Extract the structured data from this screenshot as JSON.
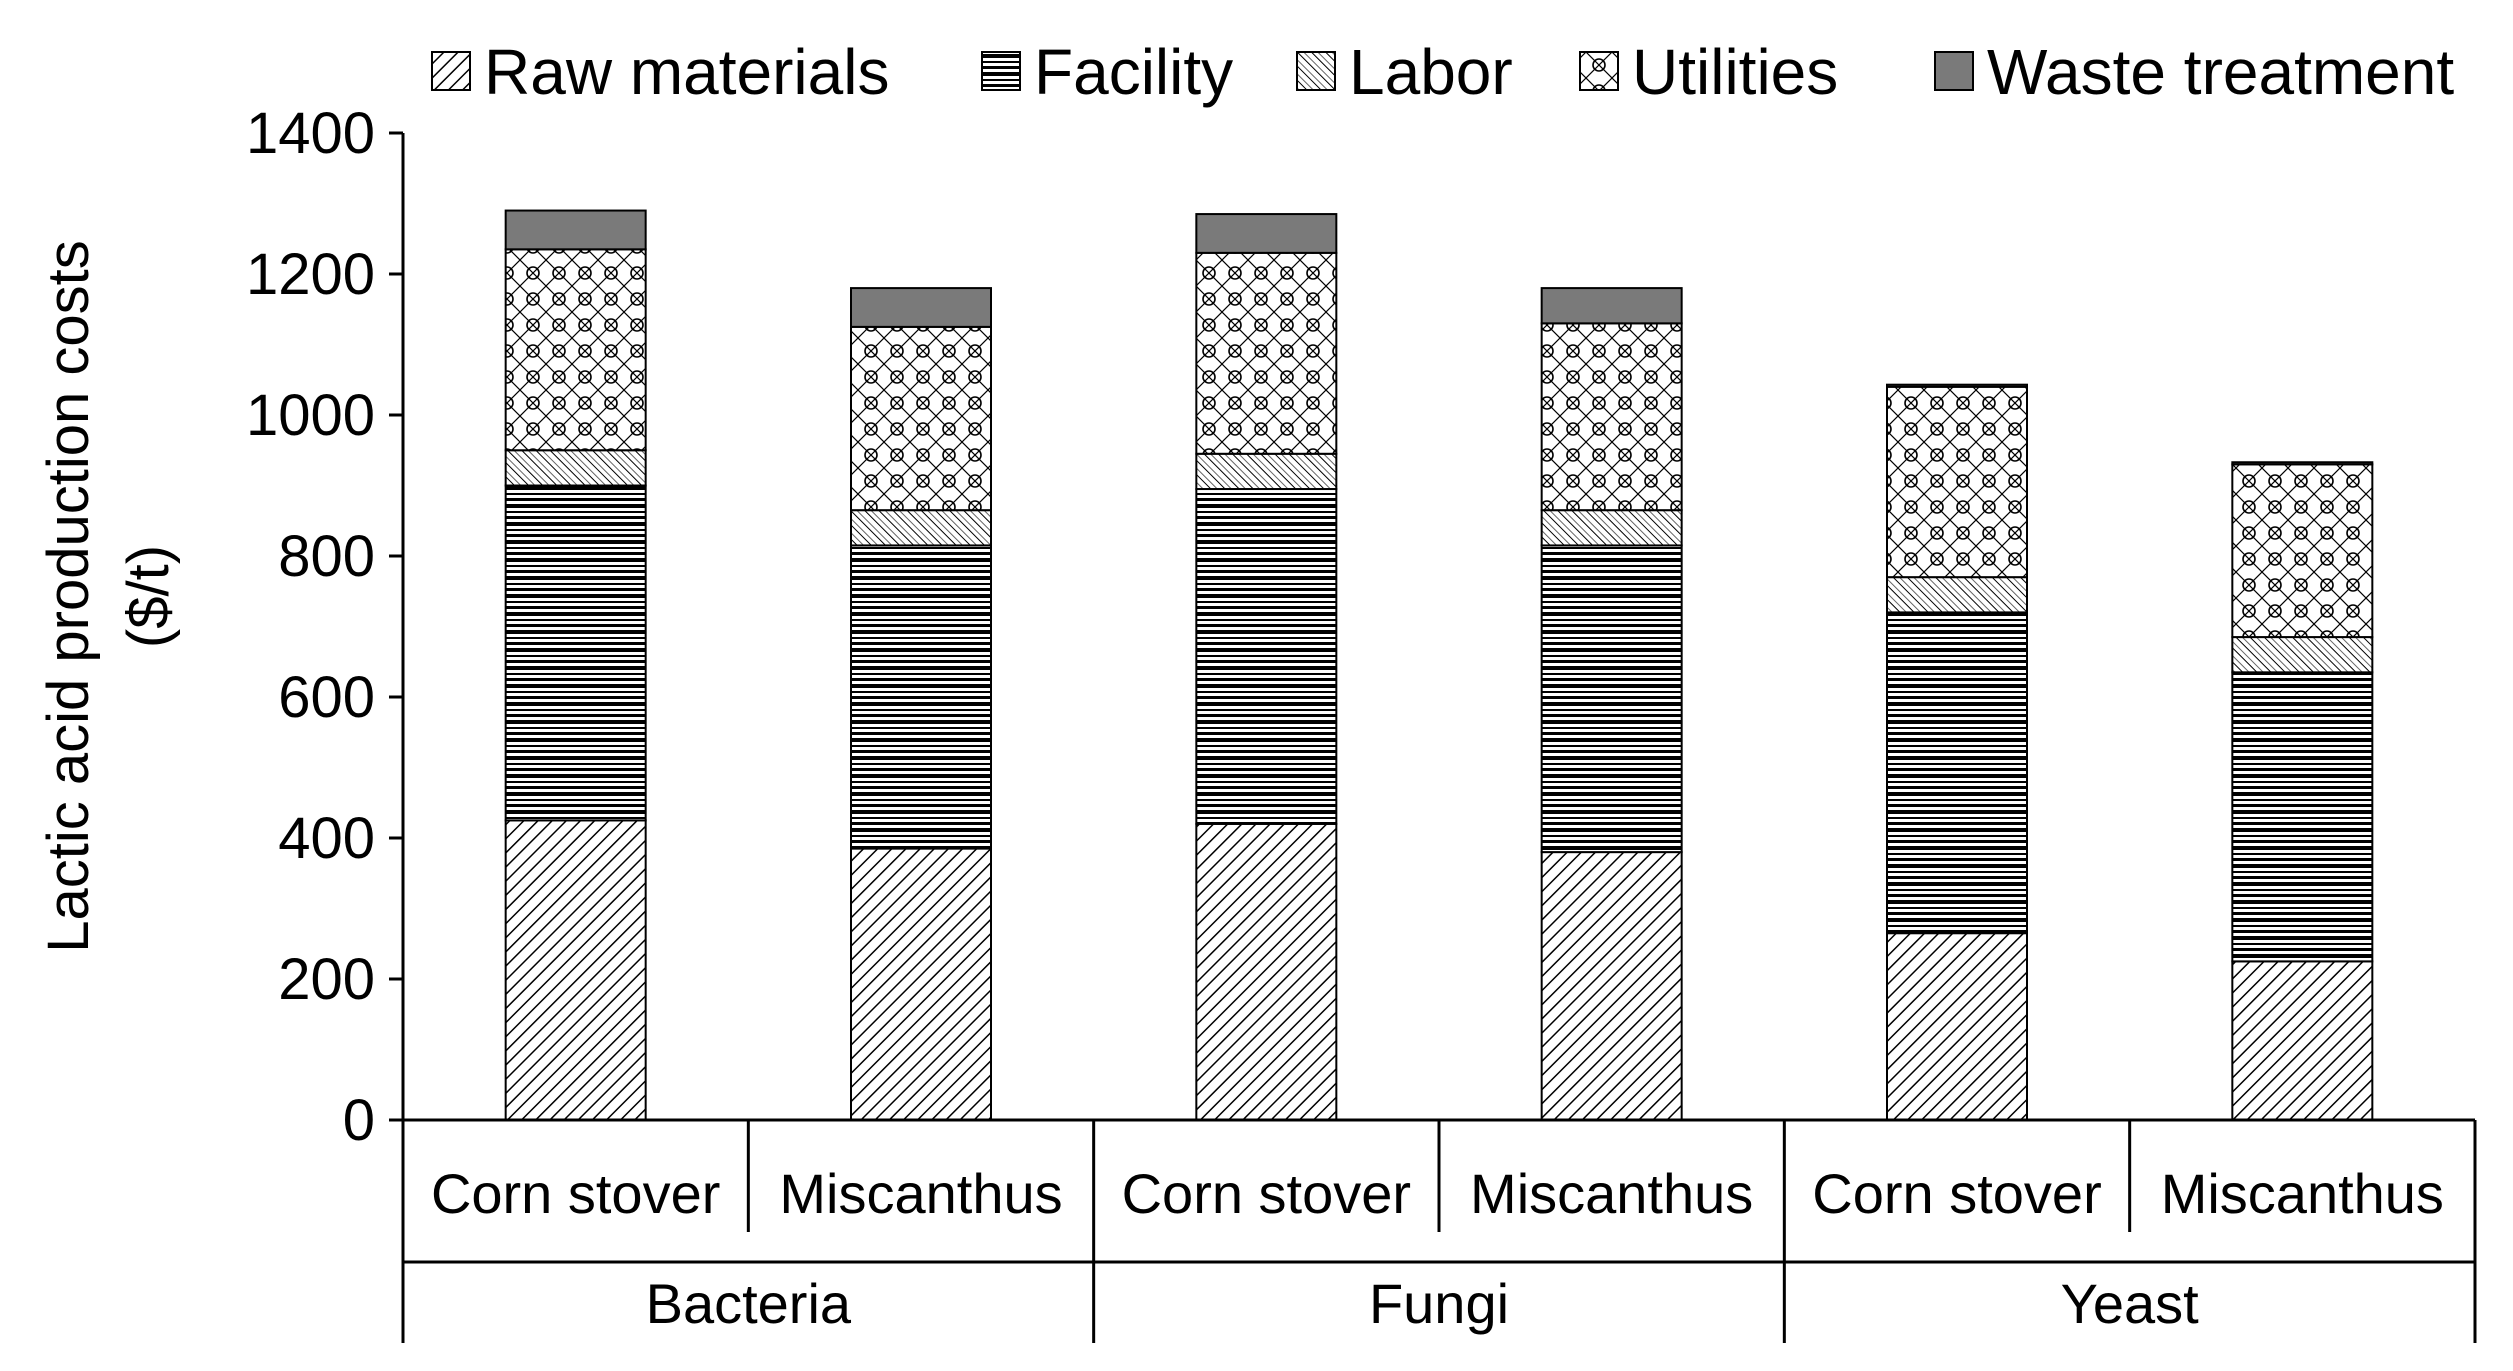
{
  "chart_data": {
    "type": "bar",
    "stacked": true,
    "ylabel": "Lactic acid production costs ($/t)",
    "ylabel_lines": [
      "Lactic acid production costs",
      "($/t)"
    ],
    "ylim": [
      0,
      1400
    ],
    "yticks": [
      0,
      200,
      400,
      600,
      800,
      1000,
      1200,
      1400
    ],
    "grid": false,
    "legend_position": "top",
    "groups": [
      {
        "label": "Bacteria",
        "categories": [
          "Corn stover",
          "Miscanthus"
        ]
      },
      {
        "label": "Fungi",
        "categories": [
          "Corn stover",
          "Miscanthus"
        ]
      },
      {
        "label": "Yeast",
        "categories": [
          "Corn stover",
          "Miscanthus"
        ]
      }
    ],
    "categories": [
      "Corn stover",
      "Miscanthus",
      "Corn stover",
      "Miscanthus",
      "Corn stover",
      "Miscanthus"
    ],
    "series": [
      {
        "name": "Raw materials",
        "pattern": "diagonal-hatch",
        "values": [
          425,
          385,
          420,
          380,
          265,
          225
        ]
      },
      {
        "name": "Facility",
        "pattern": "horizontal-stripes",
        "values": [
          475,
          430,
          475,
          435,
          455,
          410
        ]
      },
      {
        "name": "Labor",
        "pattern": "cross-diagonal",
        "values": [
          50,
          50,
          50,
          50,
          50,
          50
        ]
      },
      {
        "name": "Utilities",
        "pattern": "circle-lattice",
        "values": [
          285,
          260,
          285,
          265,
          270,
          245
        ]
      },
      {
        "name": "Waste treatment",
        "pattern": "solid-gray",
        "color": "#7a7a7a",
        "values": [
          55,
          55,
          55,
          50,
          3,
          3
        ]
      }
    ]
  }
}
